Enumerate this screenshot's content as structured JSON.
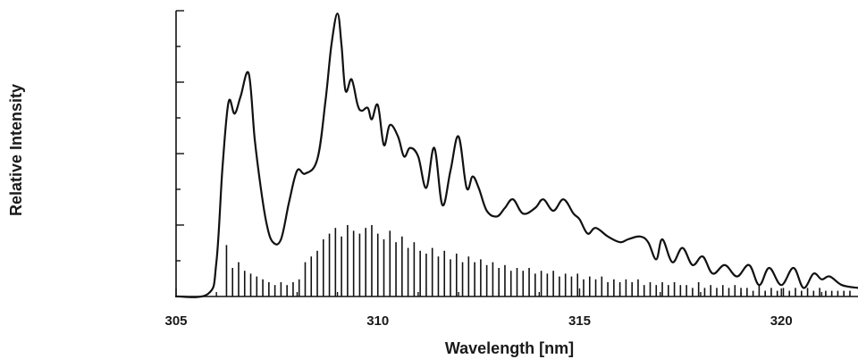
{
  "chart_data": {
    "type": "line",
    "title": "",
    "xlabel": "Wavelength [nm]",
    "ylabel": "Relative Intensity",
    "xlim": [
      305,
      321.9
    ],
    "ylim": [
      0,
      1
    ],
    "x_ticks": [
      305,
      310,
      315,
      320
    ],
    "x_tick_labels": [
      "305",
      "310",
      "315",
      "320"
    ],
    "y_tick_count": 8,
    "y_tick_labels": [],
    "grid": false,
    "legend": "none",
    "line_color": "#111111",
    "series": [
      {
        "kind": "line",
        "x": [
          305.0,
          305.8,
          306.0,
          306.15,
          306.3,
          306.45,
          306.6,
          306.8,
          306.95,
          307.1,
          307.25,
          307.4,
          307.6,
          307.8,
          308.0,
          308.2,
          308.5,
          308.7,
          308.85,
          309.0,
          309.1,
          309.2,
          309.35,
          309.5,
          309.6,
          309.75,
          309.85,
          310.0,
          310.15,
          310.3,
          310.5,
          310.65,
          310.8,
          311.0,
          311.2,
          311.4,
          311.6,
          311.8,
          312.0,
          312.2,
          312.35,
          312.5,
          312.7,
          312.95,
          313.15,
          313.35,
          313.6,
          313.9,
          314.1,
          314.35,
          314.6,
          314.85,
          315.0,
          315.2,
          315.4,
          315.7,
          316.0,
          316.2,
          316.5,
          316.7,
          316.9,
          317.05,
          317.3,
          317.55,
          317.8,
          318.05,
          318.3,
          318.6,
          318.9,
          319.2,
          319.45,
          319.7,
          320.0,
          320.3,
          320.55,
          320.8,
          321.0,
          321.2,
          321.5,
          321.9
        ],
        "y": [
          0.0,
          0.01,
          0.12,
          0.45,
          0.68,
          0.64,
          0.7,
          0.78,
          0.55,
          0.38,
          0.25,
          0.19,
          0.2,
          0.33,
          0.44,
          0.43,
          0.48,
          0.68,
          0.88,
          0.99,
          0.88,
          0.72,
          0.76,
          0.67,
          0.65,
          0.66,
          0.62,
          0.67,
          0.53,
          0.6,
          0.56,
          0.49,
          0.52,
          0.49,
          0.38,
          0.52,
          0.32,
          0.44,
          0.56,
          0.38,
          0.42,
          0.38,
          0.3,
          0.28,
          0.31,
          0.34,
          0.29,
          0.31,
          0.34,
          0.3,
          0.34,
          0.29,
          0.27,
          0.22,
          0.24,
          0.21,
          0.19,
          0.2,
          0.21,
          0.19,
          0.13,
          0.2,
          0.12,
          0.17,
          0.11,
          0.14,
          0.08,
          0.11,
          0.07,
          0.11,
          0.04,
          0.1,
          0.04,
          0.1,
          0.03,
          0.08,
          0.06,
          0.07,
          0.04,
          0.03
        ]
      },
      {
        "kind": "stick",
        "x": [
          306.25,
          306.4,
          306.55,
          306.7,
          306.85,
          307.0,
          307.15,
          307.3,
          307.45,
          307.6,
          307.75,
          307.9,
          308.05,
          308.2,
          308.35,
          308.5,
          308.65,
          308.8,
          308.95,
          309.1,
          309.25,
          309.4,
          309.55,
          309.7,
          309.85,
          310.0,
          310.15,
          310.3,
          310.45,
          310.6,
          310.75,
          310.9,
          311.05,
          311.2,
          311.35,
          311.5,
          311.65,
          311.8,
          311.95,
          312.1,
          312.25,
          312.4,
          312.55,
          312.7,
          312.85,
          313.0,
          313.15,
          313.3,
          313.45,
          313.6,
          313.75,
          313.9,
          314.05,
          314.2,
          314.35,
          314.5,
          314.65,
          314.8,
          314.95,
          315.1,
          315.25,
          315.4,
          315.55,
          315.7,
          315.85,
          316.0,
          316.15,
          316.3,
          316.45,
          316.6,
          316.75,
          316.9,
          317.05,
          317.2,
          317.35,
          317.5,
          317.65,
          317.8,
          317.95,
          318.1,
          318.25,
          318.4,
          318.55,
          318.7,
          318.85,
          319.0,
          319.15,
          319.3,
          319.45,
          319.6,
          319.75,
          319.9,
          320.05,
          320.2,
          320.35,
          320.5,
          320.65,
          320.8,
          320.95,
          321.1,
          321.25,
          321.4,
          321.55,
          321.7
        ],
        "y": [
          0.18,
          0.1,
          0.12,
          0.09,
          0.08,
          0.07,
          0.06,
          0.05,
          0.04,
          0.05,
          0.04,
          0.05,
          0.06,
          0.12,
          0.14,
          0.16,
          0.2,
          0.22,
          0.24,
          0.21,
          0.25,
          0.23,
          0.22,
          0.24,
          0.25,
          0.22,
          0.2,
          0.23,
          0.19,
          0.21,
          0.17,
          0.19,
          0.16,
          0.15,
          0.17,
          0.14,
          0.16,
          0.13,
          0.15,
          0.12,
          0.14,
          0.12,
          0.13,
          0.11,
          0.12,
          0.1,
          0.11,
          0.09,
          0.1,
          0.09,
          0.1,
          0.08,
          0.09,
          0.08,
          0.09,
          0.07,
          0.08,
          0.07,
          0.08,
          0.06,
          0.07,
          0.06,
          0.07,
          0.05,
          0.06,
          0.05,
          0.06,
          0.05,
          0.06,
          0.04,
          0.05,
          0.04,
          0.05,
          0.04,
          0.05,
          0.04,
          0.04,
          0.03,
          0.05,
          0.03,
          0.04,
          0.03,
          0.04,
          0.03,
          0.04,
          0.03,
          0.03,
          0.02,
          0.04,
          0.02,
          0.03,
          0.02,
          0.03,
          0.02,
          0.03,
          0.02,
          0.03,
          0.02,
          0.03,
          0.02,
          0.02,
          0.02,
          0.02,
          0.02
        ]
      }
    ]
  }
}
